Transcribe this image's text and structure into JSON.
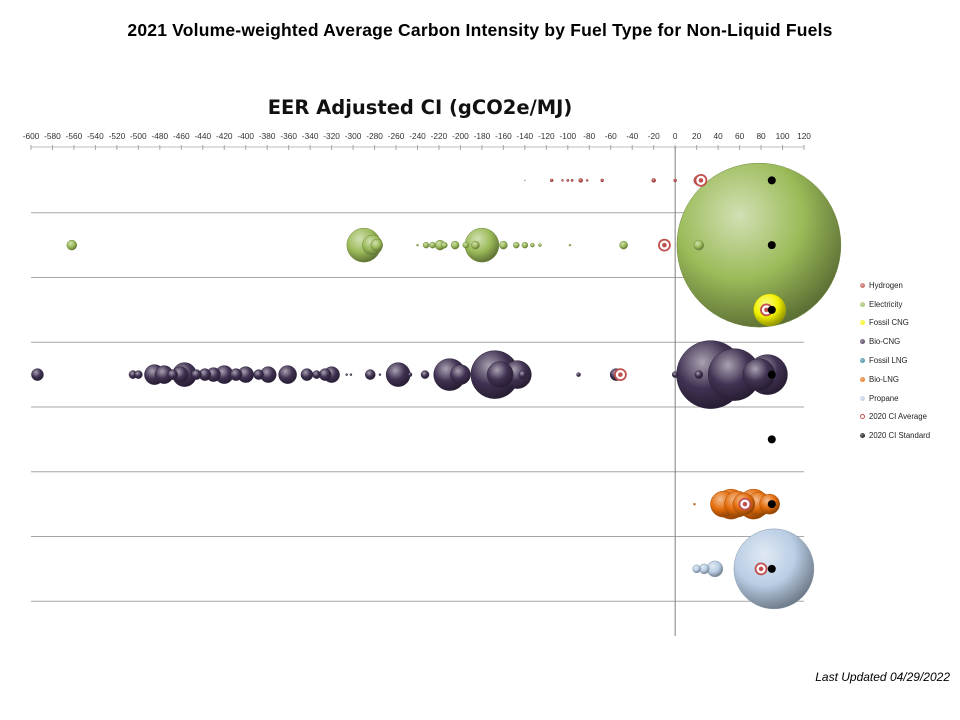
{
  "page": {
    "title": "2021 Volume-weighted  Average Carbon Intensity by Fuel Type for Non-Liquid  Fuels",
    "last_updated": "Last Updated 04/29/2022"
  },
  "chart_data": {
    "type": "bubble",
    "title": "EER Adjusted CI (gCO2e/MJ)",
    "xlabel": "EER Adjusted CI (gCO2e/MJ)",
    "xlim": [
      -600,
      120
    ],
    "x_ticks": [
      -600,
      -580,
      -560,
      -540,
      -520,
      -500,
      -480,
      -460,
      -440,
      -420,
      -400,
      -380,
      -360,
      -340,
      -320,
      -300,
      -280,
      -260,
      -240,
      -220,
      -200,
      -180,
      -160,
      -140,
      -120,
      -100,
      -80,
      -60,
      -40,
      -20,
      0,
      20,
      40,
      60,
      80,
      100,
      120
    ],
    "legend_position": "right",
    "legend": [
      {
        "name": "Hydrogen",
        "color": "#c0504d"
      },
      {
        "name": "Electricity",
        "color": "#9bbb59"
      },
      {
        "name": "Fossil CNG",
        "color": "#f2f200"
      },
      {
        "name": "Bio-CNG",
        "color": "#403152"
      },
      {
        "name": "Fossil LNG",
        "color": "#31859c"
      },
      {
        "name": "Bio-LNG",
        "color": "#e46c0a"
      },
      {
        "name": "Propane",
        "color": "#b9cde5"
      },
      {
        "name": "2020 CI Average",
        "color": "#c0504d"
      },
      {
        "name": "2020 CI Standard",
        "color": "#000000"
      }
    ],
    "rows": [
      {
        "fuel": "Hydrogen",
        "color": "#c0504d",
        "bubbles": [
          [
            -140,
            0.4
          ],
          [
            -115,
            1.5
          ],
          [
            -105,
            1
          ],
          [
            -100,
            1.2
          ],
          [
            -96,
            1.2
          ],
          [
            -88,
            2
          ],
          [
            -82,
            1
          ],
          [
            -68,
            1.5
          ],
          [
            -20,
            2
          ],
          [
            0,
            1.5
          ],
          [
            22,
            5
          ],
          [
            38,
            4
          ],
          [
            42,
            3
          ],
          [
            46,
            5.5
          ],
          [
            52,
            3.5
          ],
          [
            58,
            2.5
          ],
          [
            62,
            2
          ],
          [
            68,
            3
          ],
          [
            72,
            4
          ],
          [
            74,
            3
          ]
        ],
        "ci_average": 24,
        "ci_standard": 90
      },
      {
        "fuel": "Electricity",
        "color": "#9bbb59",
        "bubbles": [
          [
            -562,
            5
          ],
          [
            -290,
            17
          ],
          [
            -282,
            10
          ],
          [
            -278,
            6
          ],
          [
            -240,
            1
          ],
          [
            -232,
            3
          ],
          [
            -226,
            3
          ],
          [
            -219,
            5
          ],
          [
            -215,
            3
          ],
          [
            -205,
            4
          ],
          [
            -195,
            3
          ],
          [
            -180,
            17
          ],
          [
            -186,
            4
          ],
          [
            -160,
            4
          ],
          [
            -148,
            3
          ],
          [
            -140,
            3
          ],
          [
            -133,
            2
          ],
          [
            -126,
            1.5
          ],
          [
            -98,
            1
          ],
          [
            -48,
            4
          ],
          [
            -10,
            3
          ],
          [
            22,
            5
          ],
          [
            78,
            82
          ]
        ],
        "ci_average": -10,
        "ci_standard": 90
      },
      {
        "fuel": "Fossil CNG",
        "color": "#f2f200",
        "bubbles": [
          [
            88,
            16
          ]
        ],
        "ci_average": 85,
        "ci_standard": 90
      },
      {
        "fuel": "Bio-CNG",
        "color": "#403152",
        "bubbles": [
          [
            -594,
            6
          ],
          [
            -505,
            4
          ],
          [
            -500,
            4
          ],
          [
            -485,
            10
          ],
          [
            -476,
            9
          ],
          [
            -468,
            5
          ],
          [
            -461,
            8
          ],
          [
            -457,
            12
          ],
          [
            -446,
            5
          ],
          [
            -438,
            6
          ],
          [
            -430,
            7
          ],
          [
            -420,
            9
          ],
          [
            -409,
            6
          ],
          [
            -400,
            8
          ],
          [
            -388,
            5
          ],
          [
            -379,
            8
          ],
          [
            -361,
            9
          ],
          [
            -343,
            6
          ],
          [
            -334,
            4
          ],
          [
            -326,
            6
          ],
          [
            -320,
            8
          ],
          [
            -306,
            1
          ],
          [
            -302,
            1
          ],
          [
            -284,
            5
          ],
          [
            -275,
            1
          ],
          [
            -258,
            12
          ],
          [
            -247,
            2
          ],
          [
            -233,
            4
          ],
          [
            -210,
            16
          ],
          [
            -200,
            10
          ],
          [
            -168,
            24
          ],
          [
            -163,
            13
          ],
          [
            -147,
            14
          ],
          [
            -142,
            4
          ],
          [
            -90,
            2
          ],
          [
            -55,
            6
          ],
          [
            0,
            3
          ],
          [
            22,
            4
          ],
          [
            33,
            34
          ],
          [
            55,
            26
          ],
          [
            78,
            16
          ],
          [
            86,
            20
          ]
        ],
        "ci_average": -51,
        "ci_standard": 90
      },
      {
        "fuel": "Fossil LNG",
        "color": "#31859c",
        "bubbles": [],
        "ci_average": null,
        "ci_standard": 90
      },
      {
        "fuel": "Bio-LNG",
        "color": "#e46c0a",
        "bubbles": [
          [
            18,
            1
          ],
          [
            45,
            13
          ],
          [
            52,
            15
          ],
          [
            58,
            13
          ],
          [
            64,
            11
          ],
          [
            73,
            15
          ],
          [
            78,
            12
          ],
          [
            88,
            10
          ]
        ],
        "ci_average": 65,
        "ci_standard": 90
      },
      {
        "fuel": "Propane",
        "color": "#b9cde5",
        "bubbles": [
          [
            20,
            4
          ],
          [
            27,
            5
          ],
          [
            37,
            8
          ],
          [
            92,
            40
          ]
        ],
        "ci_average": 80,
        "ci_standard": 90
      }
    ]
  }
}
